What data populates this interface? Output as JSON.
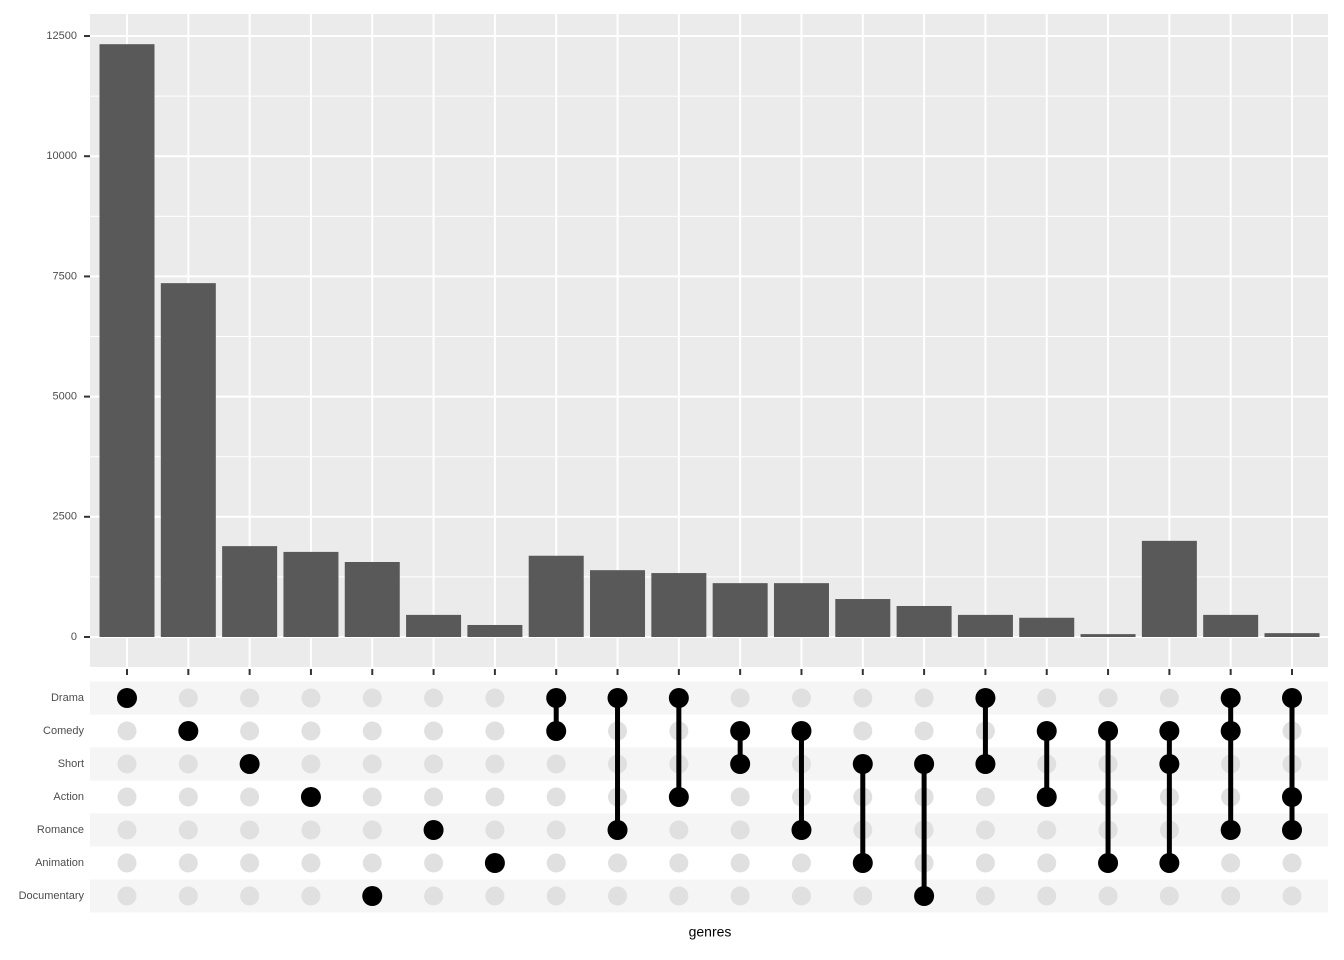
{
  "chart_data": {
    "type": "upset",
    "x_label": "genres",
    "sets": [
      "Drama",
      "Comedy",
      "Short",
      "Action",
      "Romance",
      "Animation",
      "Documentary"
    ],
    "combinations": [
      [
        "Drama"
      ],
      [
        "Comedy"
      ],
      [
        "Short"
      ],
      [
        "Action"
      ],
      [
        "Documentary"
      ],
      [
        "Romance"
      ],
      [
        "Animation"
      ],
      [
        "Drama",
        "Comedy"
      ],
      [
        "Drama",
        "Romance"
      ],
      [
        "Drama",
        "Action"
      ],
      [
        "Comedy",
        "Short"
      ],
      [
        "Comedy",
        "Romance"
      ],
      [
        "Short",
        "Animation"
      ],
      [
        "Short",
        "Documentary"
      ],
      [
        "Drama",
        "Short"
      ],
      [
        "Comedy",
        "Action"
      ],
      [
        "Comedy",
        "Animation"
      ],
      [
        "Comedy",
        "Short",
        "Animation"
      ],
      [
        "Drama",
        "Comedy",
        "Romance"
      ],
      [
        "Drama",
        "Action",
        "Romance"
      ]
    ],
    "values": [
      12330,
      7360,
      1890,
      1770,
      1560,
      460,
      250,
      1690,
      1390,
      1330,
      1120,
      1120,
      790,
      645,
      460,
      400,
      60,
      2000,
      460,
      80
    ],
    "color": "#595959",
    "ylim": [
      -624,
      12958
    ],
    "yticks": [
      0,
      2500,
      5000,
      7500,
      10000,
      12500
    ],
    "grid": true
  }
}
